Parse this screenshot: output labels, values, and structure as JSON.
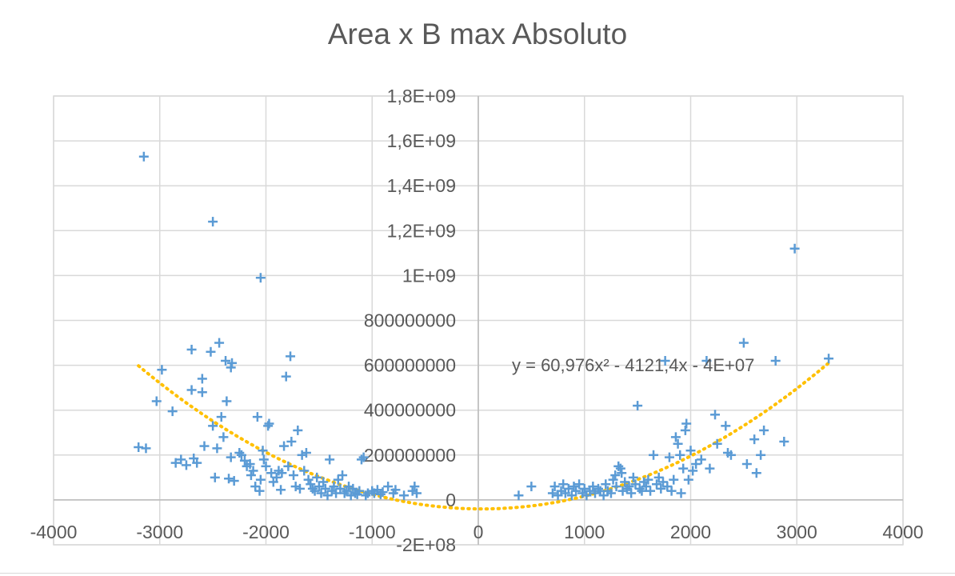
{
  "chart_data": {
    "type": "scatter",
    "title": "Area x B max Absoluto",
    "xlabel": "",
    "ylabel": "",
    "xlim": [
      -4000,
      4000
    ],
    "ylim": [
      -200000000,
      1800000000
    ],
    "x_ticks": [
      -4000,
      -3000,
      -2000,
      -1000,
      0,
      1000,
      2000,
      3000,
      4000
    ],
    "x_tick_labels": [
      "-4000",
      "-3000",
      "-2000",
      "-1000",
      "0",
      "1000",
      "2000",
      "3000",
      "4000"
    ],
    "y_ticks": [
      -200000000,
      0,
      200000000,
      400000000,
      600000000,
      800000000,
      1000000000,
      1200000000,
      1400000000,
      1600000000,
      1800000000
    ],
    "y_tick_labels": [
      "-2E+08",
      "0",
      "200000000",
      "400000000",
      "600000000",
      "800000000",
      "1E+09",
      "1,2E+09",
      "1,4E+09",
      "1,6E+09",
      "1,8E+09"
    ],
    "grid": true,
    "marker": "+",
    "marker_color": "#5b9bd5",
    "trendline": {
      "type": "polynomial",
      "order": 2,
      "coefficients": {
        "a": 60.976,
        "b": -4121.4,
        "c": -40000000
      },
      "x_range": [
        -3200,
        3300
      ],
      "color": "#ffc000",
      "style": "dotted",
      "equation_label": "y = 60,976x² - 4121,4x - 4E+07"
    },
    "series": [
      {
        "points": [
          [
            -3150,
            1530000000
          ],
          [
            -2500,
            1240000000
          ],
          [
            -2050,
            990000000
          ],
          [
            2980,
            1120000000
          ],
          [
            -3200,
            235000000
          ],
          [
            -3130,
            230000000
          ],
          [
            -2980,
            580000000
          ],
          [
            -3030,
            440000000
          ],
          [
            -2880,
            395000000
          ],
          [
            -2850,
            165000000
          ],
          [
            -2800,
            180000000
          ],
          [
            -2750,
            155000000
          ],
          [
            -2700,
            670000000
          ],
          [
            -2700,
            490000000
          ],
          [
            -2680,
            185000000
          ],
          [
            -2650,
            165000000
          ],
          [
            -2600,
            540000000
          ],
          [
            -2600,
            480000000
          ],
          [
            -2580,
            240000000
          ],
          [
            -2520,
            660000000
          ],
          [
            -2500,
            330000000
          ],
          [
            -2480,
            100000000
          ],
          [
            -2460,
            230000000
          ],
          [
            -2440,
            700000000
          ],
          [
            -2420,
            370000000
          ],
          [
            -2400,
            280000000
          ],
          [
            -2380,
            620000000
          ],
          [
            -2370,
            440000000
          ],
          [
            -2350,
            95000000
          ],
          [
            -2330,
            590000000
          ],
          [
            -2320,
            610000000
          ],
          [
            -2330,
            190000000
          ],
          [
            -2300,
            85000000
          ],
          [
            -2250,
            210000000
          ],
          [
            -2230,
            200000000
          ],
          [
            -2200,
            175000000
          ],
          [
            -2180,
            150000000
          ],
          [
            -2150,
            160000000
          ],
          [
            -2140,
            110000000
          ],
          [
            -2120,
            130000000
          ],
          [
            -2100,
            60000000
          ],
          [
            -2080,
            370000000
          ],
          [
            -2060,
            40000000
          ],
          [
            -2050,
            90000000
          ],
          [
            -2030,
            220000000
          ],
          [
            -2020,
            180000000
          ],
          [
            -2000,
            150000000
          ],
          [
            -1980,
            330000000
          ],
          [
            -1970,
            340000000
          ],
          [
            -1950,
            120000000
          ],
          [
            -1930,
            80000000
          ],
          [
            -1900,
            100000000
          ],
          [
            -1880,
            130000000
          ],
          [
            -1860,
            45000000
          ],
          [
            -1850,
            120000000
          ],
          [
            -1830,
            240000000
          ],
          [
            -1810,
            550000000
          ],
          [
            -1790,
            150000000
          ],
          [
            -1770,
            640000000
          ],
          [
            -1760,
            260000000
          ],
          [
            -1740,
            110000000
          ],
          [
            -1720,
            60000000
          ],
          [
            -1700,
            310000000
          ],
          [
            -1680,
            50000000
          ],
          [
            -1660,
            200000000
          ],
          [
            -1640,
            130000000
          ],
          [
            -1620,
            210000000
          ],
          [
            -1600,
            90000000
          ],
          [
            -1580,
            70000000
          ],
          [
            -1560,
            50000000
          ],
          [
            -1540,
            40000000
          ],
          [
            -1520,
            100000000
          ],
          [
            -1500,
            60000000
          ],
          [
            -1480,
            30000000
          ],
          [
            -1460,
            80000000
          ],
          [
            -1440,
            50000000
          ],
          [
            -1420,
            20000000
          ],
          [
            -1400,
            180000000
          ],
          [
            -1380,
            40000000
          ],
          [
            -1360,
            60000000
          ],
          [
            -1340,
            30000000
          ],
          [
            -1320,
            90000000
          ],
          [
            -1300,
            50000000
          ],
          [
            -1280,
            110000000
          ],
          [
            -1260,
            30000000
          ],
          [
            -1240,
            40000000
          ],
          [
            -1220,
            60000000
          ],
          [
            -1200,
            20000000
          ],
          [
            -1180,
            50000000
          ],
          [
            -1160,
            30000000
          ],
          [
            -1140,
            25000000
          ],
          [
            -1120,
            40000000
          ],
          [
            -1100,
            180000000
          ],
          [
            -1080,
            190000000
          ],
          [
            -1060,
            20000000
          ],
          [
            -1040,
            30000000
          ],
          [
            -1000,
            40000000
          ],
          [
            -980,
            30000000
          ],
          [
            -950,
            45000000
          ],
          [
            -920,
            25000000
          ],
          [
            -900,
            35000000
          ],
          [
            -850,
            60000000
          ],
          [
            -800,
            30000000
          ],
          [
            -780,
            45000000
          ],
          [
            -700,
            20000000
          ],
          [
            -620,
            40000000
          ],
          [
            -600,
            60000000
          ],
          [
            -580,
            30000000
          ],
          [
            380,
            20000000
          ],
          [
            500,
            60000000
          ],
          [
            700,
            30000000
          ],
          [
            720,
            60000000
          ],
          [
            750,
            20000000
          ],
          [
            780,
            40000000
          ],
          [
            800,
            70000000
          ],
          [
            820,
            30000000
          ],
          [
            850,
            50000000
          ],
          [
            880,
            20000000
          ],
          [
            900,
            60000000
          ],
          [
            920,
            40000000
          ],
          [
            950,
            70000000
          ],
          [
            980,
            30000000
          ],
          [
            1000,
            50000000
          ],
          [
            1020,
            20000000
          ],
          [
            1050,
            40000000
          ],
          [
            1080,
            60000000
          ],
          [
            1100,
            30000000
          ],
          [
            1130,
            50000000
          ],
          [
            1150,
            40000000
          ],
          [
            1180,
            20000000
          ],
          [
            1200,
            70000000
          ],
          [
            1220,
            40000000
          ],
          [
            1250,
            30000000
          ],
          [
            1270,
            90000000
          ],
          [
            1290,
            110000000
          ],
          [
            1300,
            60000000
          ],
          [
            1320,
            150000000
          ],
          [
            1340,
            140000000
          ],
          [
            1350,
            120000000
          ],
          [
            1360,
            40000000
          ],
          [
            1380,
            80000000
          ],
          [
            1400,
            50000000
          ],
          [
            1420,
            60000000
          ],
          [
            1440,
            30000000
          ],
          [
            1460,
            100000000
          ],
          [
            1480,
            70000000
          ],
          [
            1500,
            420000000
          ],
          [
            1520,
            50000000
          ],
          [
            1540,
            40000000
          ],
          [
            1560,
            80000000
          ],
          [
            1580,
            60000000
          ],
          [
            1600,
            90000000
          ],
          [
            1620,
            40000000
          ],
          [
            1650,
            200000000
          ],
          [
            1680,
            70000000
          ],
          [
            1700,
            100000000
          ],
          [
            1720,
            50000000
          ],
          [
            1740,
            80000000
          ],
          [
            1760,
            620000000
          ],
          [
            1780,
            60000000
          ],
          [
            1800,
            190000000
          ],
          [
            1820,
            40000000
          ],
          [
            1840,
            90000000
          ],
          [
            1860,
            280000000
          ],
          [
            1880,
            250000000
          ],
          [
            1900,
            200000000
          ],
          [
            1910,
            30000000
          ],
          [
            1930,
            140000000
          ],
          [
            1950,
            310000000
          ],
          [
            1960,
            340000000
          ],
          [
            1980,
            90000000
          ],
          [
            2000,
            220000000
          ],
          [
            2020,
            130000000
          ],
          [
            2050,
            160000000
          ],
          [
            2100,
            180000000
          ],
          [
            2150,
            620000000
          ],
          [
            2180,
            140000000
          ],
          [
            2230,
            380000000
          ],
          [
            2250,
            250000000
          ],
          [
            2330,
            330000000
          ],
          [
            2350,
            210000000
          ],
          [
            2380,
            200000000
          ],
          [
            2500,
            700000000
          ],
          [
            2530,
            160000000
          ],
          [
            2600,
            270000000
          ],
          [
            2620,
            120000000
          ],
          [
            2660,
            200000000
          ],
          [
            2690,
            310000000
          ],
          [
            2800,
            620000000
          ],
          [
            2880,
            260000000
          ],
          [
            3300,
            630000000
          ]
        ]
      }
    ]
  }
}
